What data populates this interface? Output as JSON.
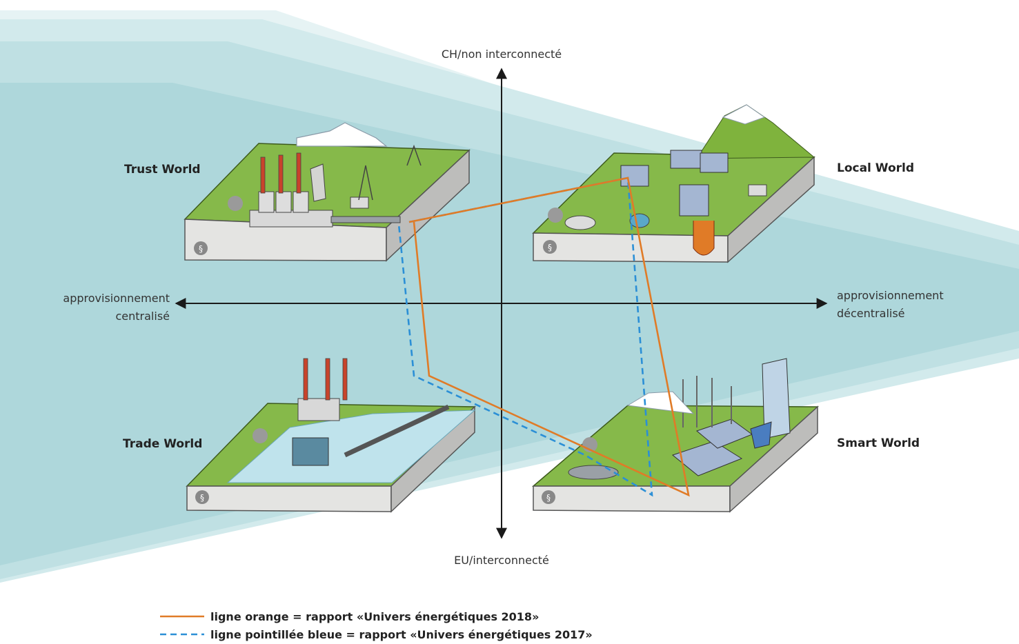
{
  "axes": {
    "top": "CH/non interconnecté",
    "bottom": "EU/interconnecté",
    "left": [
      "approvisionnement",
      "centralisé"
    ],
    "right": [
      "approvisionnement",
      "décentralisé"
    ]
  },
  "worlds": {
    "trust": "Trust World",
    "local": "Local World",
    "trade": "Trade World",
    "smart": "Smart World"
  },
  "legend": {
    "orange": "ligne orange = rapport «Univers énergétiques 2018»",
    "blue": "ligne pointillée bleue = rapport «Univers énergétiques 2017»"
  },
  "colors": {
    "orange": "#e07b27",
    "blue": "#2b8fd6",
    "grass": "#7fb33d",
    "band": "#b9dce0"
  }
}
